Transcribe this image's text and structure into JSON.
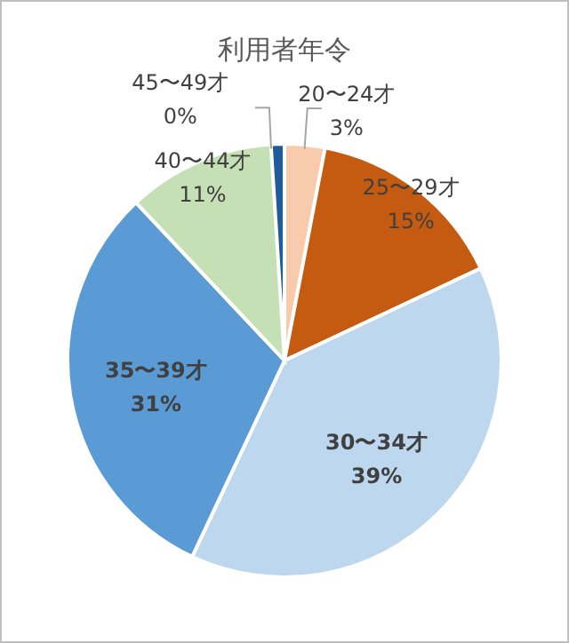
{
  "chart_data": {
    "type": "pie",
    "title": "利用者年令",
    "categories": [
      "20〜24才",
      "25〜29才",
      "30〜34才",
      "35〜39才",
      "40〜44才",
      "45〜49才",
      null
    ],
    "values": [
      3,
      15,
      39,
      31,
      11,
      0,
      1
    ],
    "value_labels": [
      "3%",
      "15%",
      "39%",
      "31%",
      "11%",
      "0%",
      null
    ],
    "colors": [
      "#f8cbad",
      "#c55a11",
      "#bdd7ee",
      "#5b9bd5",
      "#c5e0b4",
      "#a9d18e",
      "#1f5c99"
    ],
    "legend": false
  }
}
